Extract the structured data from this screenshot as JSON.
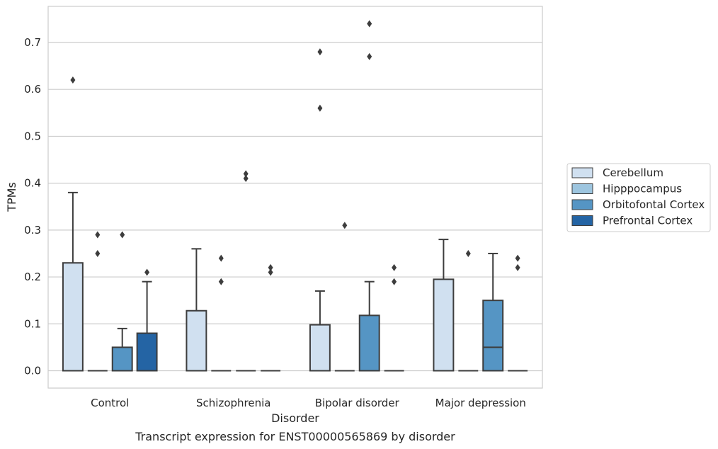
{
  "chart_data": {
    "type": "box",
    "title": "",
    "caption": "Transcript expression for ENST00000565869 by disorder",
    "xlabel": "Disorder",
    "ylabel": "TPMs",
    "ylim": [
      -0.037,
      0.777
    ],
    "yticks": [
      0.0,
      0.1,
      0.2,
      0.3,
      0.4,
      0.5,
      0.6,
      0.7
    ],
    "ytick_labels": [
      "0.0",
      "0.1",
      "0.2",
      "0.3",
      "0.4",
      "0.5",
      "0.6",
      "0.7"
    ],
    "grid": "horizontal",
    "legend_position": "right",
    "categories": [
      "Control",
      "Schizophrenia",
      "Bipolar disorder",
      "Major depression"
    ],
    "series": [
      {
        "name": "Cerebellum",
        "color": "#d0e0f0",
        "boxes": [
          {
            "q1": 0.0,
            "median": 0.0,
            "q3": 0.23,
            "whislo": 0.0,
            "whishi": 0.38,
            "fliers": [
              0.62
            ]
          },
          {
            "q1": 0.0,
            "median": 0.0,
            "q3": 0.128,
            "whislo": 0.0,
            "whishi": 0.26,
            "fliers": []
          },
          {
            "q1": 0.0,
            "median": 0.0,
            "q3": 0.098,
            "whislo": 0.0,
            "whishi": 0.17,
            "fliers": [
              0.56,
              0.68
            ]
          },
          {
            "q1": 0.0,
            "median": 0.0,
            "q3": 0.195,
            "whislo": 0.0,
            "whishi": 0.28,
            "fliers": []
          }
        ]
      },
      {
        "name": "Hipppocampus",
        "color": "#9dc5df",
        "boxes": [
          {
            "q1": 0.0,
            "median": 0.0,
            "q3": 0.0,
            "whislo": 0.0,
            "whishi": 0.0,
            "fliers": [
              0.25,
              0.29
            ]
          },
          {
            "q1": 0.0,
            "median": 0.0,
            "q3": 0.0,
            "whislo": 0.0,
            "whishi": 0.0,
            "fliers": [
              0.19,
              0.24
            ]
          },
          {
            "q1": 0.0,
            "median": 0.0,
            "q3": 0.0,
            "whislo": 0.0,
            "whishi": 0.0,
            "fliers": [
              0.31
            ]
          },
          {
            "q1": 0.0,
            "median": 0.0,
            "q3": 0.0,
            "whislo": 0.0,
            "whishi": 0.0,
            "fliers": [
              0.25
            ]
          }
        ]
      },
      {
        "name": "Orbitofontal Cortex",
        "color": "#5595c4",
        "boxes": [
          {
            "q1": 0.0,
            "median": 0.0,
            "q3": 0.05,
            "whislo": 0.0,
            "whishi": 0.09,
            "fliers": [
              0.29
            ]
          },
          {
            "q1": 0.0,
            "median": 0.0,
            "q3": 0.0,
            "whislo": 0.0,
            "whishi": 0.0,
            "fliers": [
              0.41,
              0.42
            ]
          },
          {
            "q1": 0.0,
            "median": 0.0,
            "q3": 0.118,
            "whislo": 0.0,
            "whishi": 0.19,
            "fliers": [
              0.67,
              0.74
            ]
          },
          {
            "q1": 0.0,
            "median": 0.05,
            "q3": 0.15,
            "whislo": 0.0,
            "whishi": 0.25,
            "fliers": []
          }
        ]
      },
      {
        "name": "Prefrontal Cortex",
        "color": "#2464a4",
        "boxes": [
          {
            "q1": 0.0,
            "median": 0.0,
            "q3": 0.08,
            "whislo": 0.0,
            "whishi": 0.19,
            "fliers": [
              0.21
            ]
          },
          {
            "q1": 0.0,
            "median": 0.0,
            "q3": 0.0,
            "whislo": 0.0,
            "whishi": 0.0,
            "fliers": [
              0.21,
              0.22
            ]
          },
          {
            "q1": 0.0,
            "median": 0.0,
            "q3": 0.0,
            "whislo": 0.0,
            "whishi": 0.0,
            "fliers": [
              0.19,
              0.22
            ]
          },
          {
            "q1": 0.0,
            "median": 0.0,
            "q3": 0.0,
            "whislo": 0.0,
            "whishi": 0.0,
            "fliers": [
              0.22,
              0.24
            ]
          }
        ]
      }
    ]
  }
}
